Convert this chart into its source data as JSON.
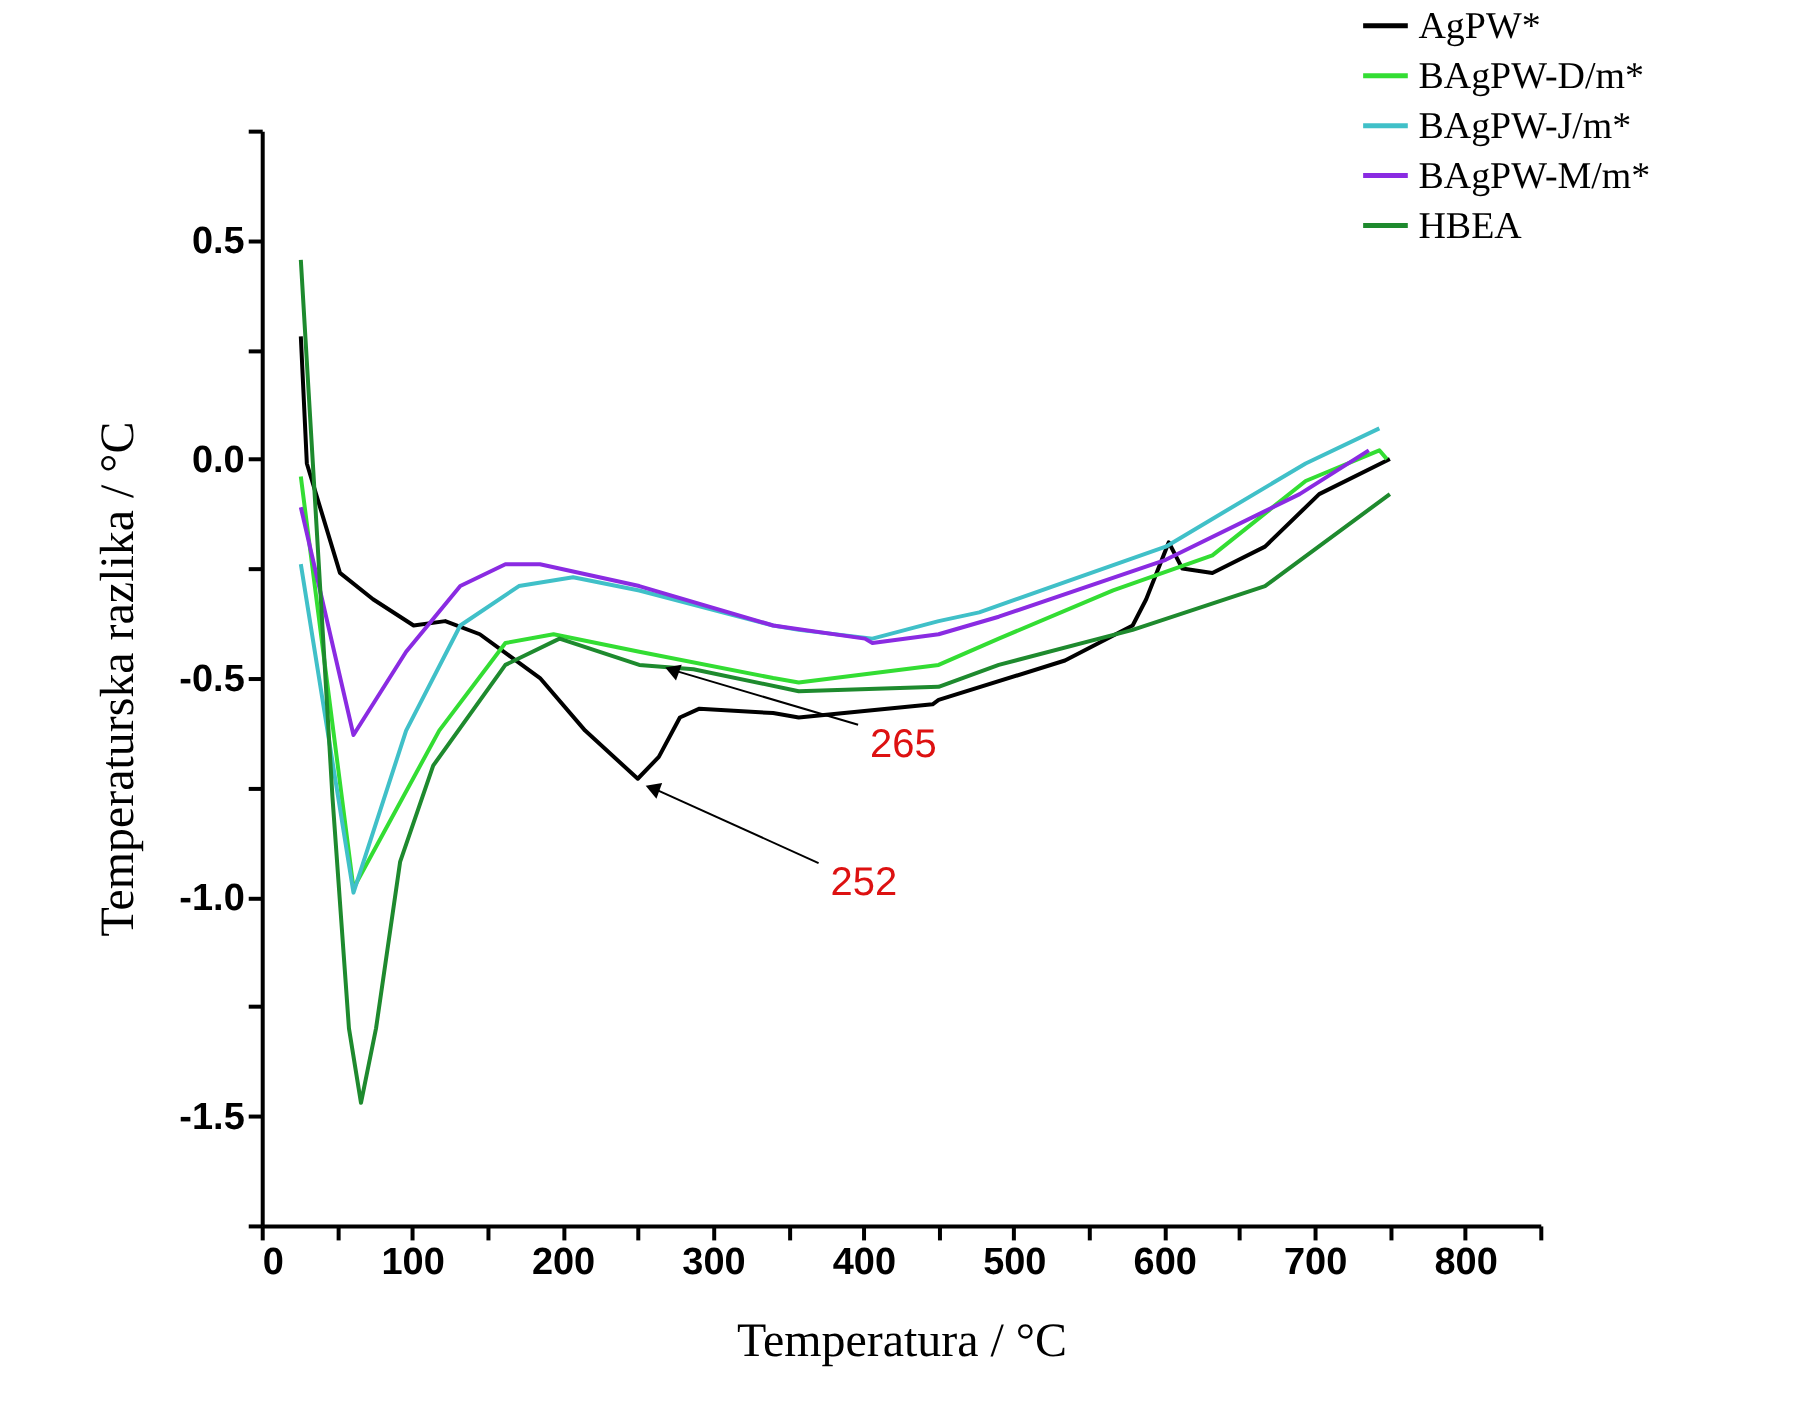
{
  "chart_data": {
    "type": "line",
    "xlabel": "Temperatura / °C",
    "ylabel": "Temperaturska razlika / °C",
    "xlim": [
      0,
      850
    ],
    "ylim": [
      -1.75,
      0.75
    ],
    "xticks": [
      0,
      {
        "value": 50,
        "label": null
      },
      100,
      {
        "value": 150,
        "label": null
      },
      200,
      {
        "value": 250,
        "label": null
      },
      300,
      {
        "value": 350,
        "label": null
      },
      400,
      {
        "value": 450,
        "label": null
      },
      500,
      {
        "value": 550,
        "label": null
      },
      600,
      {
        "value": 650,
        "label": null
      },
      700,
      {
        "value": 750,
        "label": null
      },
      800,
      {
        "value": 850,
        "label": null
      }
    ],
    "yticks": [
      {
        "value": -1.75,
        "label": null
      },
      -1.5,
      {
        "value": -1.25,
        "label": null
      },
      {
        "value": -1,
        "label": "-1.0"
      },
      {
        "value": -0.75,
        "label": null
      },
      -0.5,
      {
        "value": -0.25,
        "label": null
      },
      {
        "value": 0,
        "label": "0.0"
      },
      {
        "value": 0.25,
        "label": null
      },
      0.5,
      {
        "value": 0.75,
        "label": null
      }
    ],
    "grid": false,
    "legend": "top right",
    "marker": "none",
    "line_style": "solid",
    "series": [
      {
        "name": "AgPW*",
        "color": "#000000",
        "x": [
          26,
          30,
          52,
          74,
          101,
          122,
          145,
          185,
          215,
          250,
          264,
          278,
          291,
          340,
          357,
          446,
          450,
          534,
          579,
          588,
          603,
          612,
          632,
          667,
          703,
          750
        ],
        "values": [
          0.28,
          -0.01,
          -0.26,
          -0.32,
          -0.38,
          -0.37,
          -0.4,
          -0.5,
          -0.62,
          -0.73,
          -0.68,
          -0.59,
          -0.57,
          -0.58,
          -0.59,
          -0.56,
          -0.55,
          -0.46,
          -0.38,
          -0.32,
          -0.19,
          -0.25,
          -0.26,
          -0.2,
          -0.08,
          0.0
        ]
      },
      {
        "name": "BAgPW-D/m*",
        "color": "#33dd33",
        "x": [
          26,
          61,
          118,
          162,
          194,
          251,
          340,
          357,
          450,
          490,
          566,
          632,
          694,
          743,
          748
        ],
        "values": [
          -0.04,
          -0.98,
          -0.62,
          -0.42,
          -0.4,
          -0.44,
          -0.5,
          -0.51,
          -0.47,
          -0.41,
          -0.3,
          -0.22,
          -0.05,
          0.02,
          0.0
        ]
      },
      {
        "name": "BAgPW-J/m*",
        "color": "#40c0c8",
        "x": [
          26,
          61,
          96,
          132,
          171,
          207,
          251,
          340,
          357,
          406,
          450,
          477,
          601,
          694,
          743
        ],
        "values": [
          -0.24,
          -0.99,
          -0.62,
          -0.38,
          -0.29,
          -0.27,
          -0.3,
          -0.38,
          -0.39,
          -0.41,
          -0.37,
          -0.35,
          -0.2,
          -0.01,
          0.07
        ]
      },
      {
        "name": "BAgPW-M/m*",
        "color": "#8a2be2",
        "x": [
          26,
          61,
          96,
          132,
          162,
          185,
          251,
          340,
          401,
          406,
          450,
          490,
          601,
          690,
          736
        ],
        "values": [
          -0.11,
          -0.63,
          -0.44,
          -0.29,
          -0.24,
          -0.24,
          -0.29,
          -0.38,
          -0.41,
          -0.42,
          -0.4,
          -0.36,
          -0.23,
          -0.08,
          0.02
        ]
      },
      {
        "name": "HBEA",
        "color": "#1e8a2e",
        "x": [
          26,
          34,
          47,
          58,
          66,
          76,
          92,
          114,
          162,
          198,
          251,
          287,
          357,
          450,
          490,
          579,
          667,
          750
        ],
        "values": [
          0.455,
          -0.01,
          -0.77,
          -1.3,
          -1.47,
          -1.3,
          -0.92,
          -0.7,
          -0.47,
          -0.41,
          -0.47,
          -0.48,
          -0.53,
          -0.52,
          -0.47,
          -0.39,
          -0.29,
          -0.08
        ]
      }
    ],
    "annotations": [
      {
        "text": "265",
        "x": 265,
        "y": -0.47
      },
      {
        "text": "252",
        "x": 252,
        "y": -0.74
      }
    ]
  }
}
